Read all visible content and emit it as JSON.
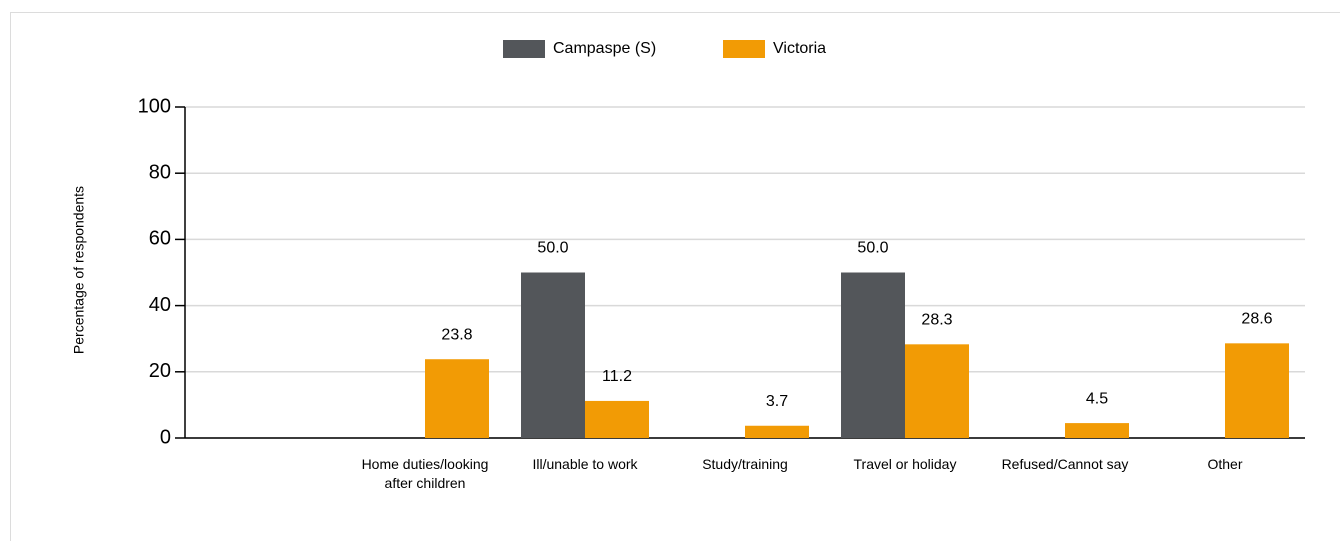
{
  "chart_data": {
    "type": "bar",
    "y_label": "Percentage of respondents",
    "categories": [
      null,
      "Home duties/looking after children",
      "Ill/unable to work",
      "Study/training",
      "Travel or holiday",
      "Refused/Cannot say",
      "Other"
    ],
    "series": [
      {
        "name": "Campaspe (S)",
        "color": "#53565a",
        "values": [
          null,
          null,
          50,
          null,
          50,
          null,
          null
        ],
        "value_labels": [
          null,
          null,
          "50.0",
          null,
          "50.0",
          null,
          null
        ]
      },
      {
        "name": "Victoria",
        "color": "#f29b05",
        "values": [
          null,
          23.8,
          11.2,
          3.7,
          28.3,
          4.5,
          28.6
        ]
      }
    ],
    "ylim": [
      0,
      100
    ],
    "yticks": [
      0,
      20,
      40,
      60,
      80,
      100
    ],
    "grid": true,
    "legend": "top"
  }
}
